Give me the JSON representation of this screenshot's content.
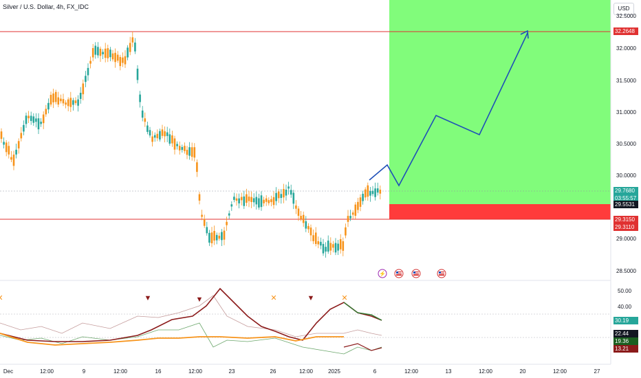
{
  "header": {
    "symbol_title": "Silver / U.S. Dollar, 4h, FX_IDC",
    "currency_button": "USD"
  },
  "price_axis": {
    "ticks": [
      "32.5000",
      "32.0000",
      "31.5000",
      "31.0000",
      "30.5000",
      "30.0000",
      "29.0000",
      "28.5000"
    ],
    "tick_values": [
      32.5,
      32.0,
      31.5,
      31.0,
      30.5,
      30.0,
      29.0,
      28.5
    ]
  },
  "price_tags": {
    "target": "32.2648",
    "last_price": "29.7680",
    "countdown": "03:55:57",
    "mark_price": "29.5531",
    "stop_upper": "29.3150",
    "stop_lower": "29.3110"
  },
  "indicator_axis": {
    "ticks": [
      "50.00",
      "40.00"
    ],
    "tick_values": [
      50,
      40
    ],
    "tags": {
      "tag1": "30.19",
      "tag2": "22.44",
      "tag3": "19.36",
      "tag4": "13.21"
    }
  },
  "time_axis": {
    "labels": [
      "Dec",
      "12:00",
      "9",
      "12:00",
      "16",
      "12:00",
      "23",
      "26",
      "12:00",
      "2025",
      "6",
      "12:00",
      "13",
      "12:00",
      "20",
      "12:00",
      "27"
    ]
  },
  "colors": {
    "bull": "#26a69a",
    "bear": "#f7931a",
    "profit_zone": "#81fc7b",
    "loss_zone": "#ff3b3b",
    "level_line": "#e03131",
    "projection": "#1e4fb8"
  },
  "event_icons": [
    "lightning-icon",
    "us-flag-icon",
    "us-flag-icon",
    "us-flag-icon"
  ]
}
